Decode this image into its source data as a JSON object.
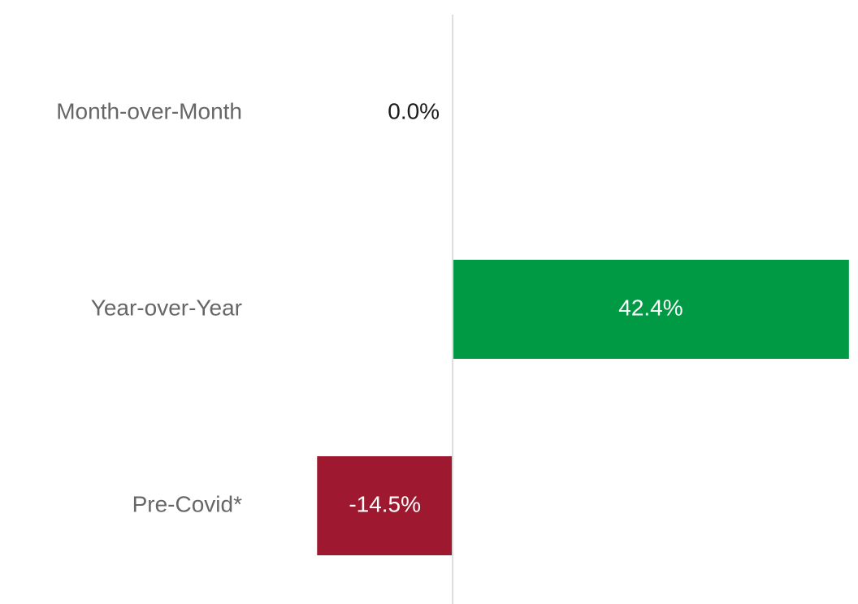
{
  "chart_data": {
    "type": "barh",
    "categories": [
      "Month-over-Month",
      "Year-over-Year",
      "Pre-Covid*"
    ],
    "values": [
      0.0,
      42.4,
      -14.5
    ],
    "value_labels": [
      "0.0%",
      "42.4%",
      "-14.5%"
    ],
    "colors": [
      "#009a44",
      "#009a44",
      "#9e1830"
    ],
    "xlim": [
      -20,
      42.5
    ]
  }
}
